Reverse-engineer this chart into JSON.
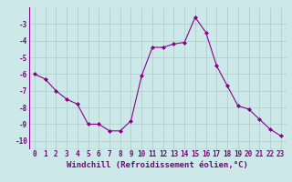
{
  "x": [
    0,
    1,
    2,
    3,
    4,
    5,
    6,
    7,
    8,
    9,
    10,
    11,
    12,
    13,
    14,
    15,
    16,
    17,
    18,
    19,
    20,
    21,
    22,
    23
  ],
  "y": [
    -6.0,
    -6.3,
    -7.0,
    -7.5,
    -7.8,
    -9.0,
    -9.0,
    -9.4,
    -9.4,
    -8.8,
    -6.1,
    -4.4,
    -4.4,
    -4.2,
    -4.1,
    -2.6,
    -3.5,
    -5.5,
    -6.7,
    -7.9,
    -8.1,
    -8.7,
    -9.3,
    -9.7
  ],
  "line_color": "#8B008B",
  "marker": "D",
  "marker_size": 2.0,
  "linewidth": 0.8,
  "xlabel": "Windchill (Refroidissement éolien,°C)",
  "xlabel_fontsize": 6.5,
  "ylabel": "",
  "ylim": [
    -10.5,
    -2.0
  ],
  "xlim": [
    -0.5,
    23.5
  ],
  "yticks": [
    -10,
    -9,
    -8,
    -7,
    -6,
    -5,
    -4,
    -3
  ],
  "xtick_labels": [
    "0",
    "1",
    "2",
    "3",
    "4",
    "5",
    "6",
    "7",
    "8",
    "9",
    "10",
    "11",
    "12",
    "13",
    "14",
    "15",
    "16",
    "17",
    "18",
    "19",
    "20",
    "21",
    "22",
    "23"
  ],
  "background_color": "#cce8e8",
  "grid_color": "#aacaca",
  "tick_color": "#800080",
  "tick_fontsize": 5.5,
  "title": ""
}
